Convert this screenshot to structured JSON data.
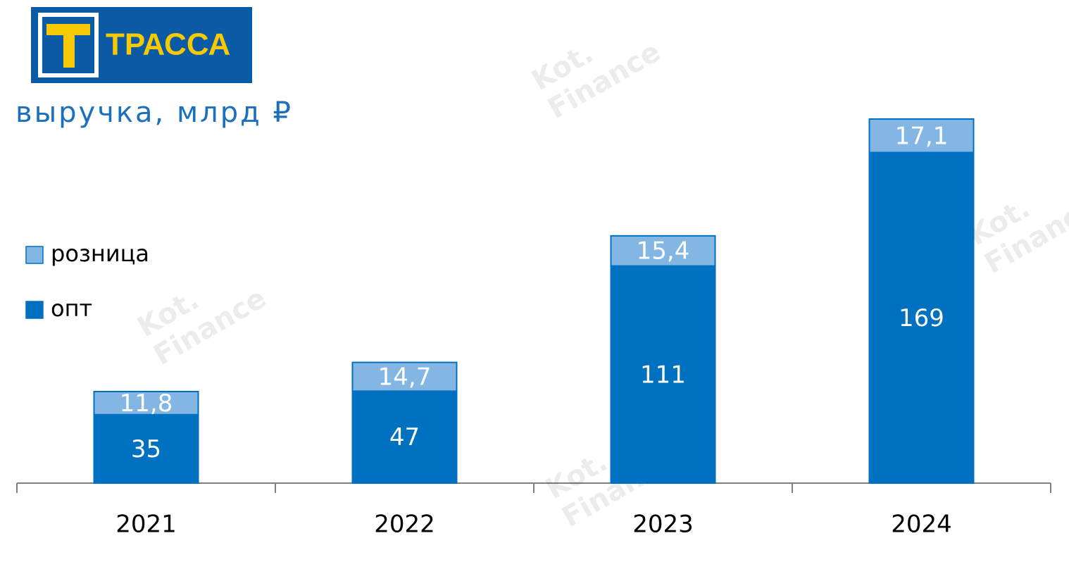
{
  "logo": "ТРАССА",
  "watermark": [
    "Kot.",
    "Finance"
  ],
  "chart_data": {
    "type": "bar",
    "stacked": true,
    "title": "выручка, млрд ₽",
    "categories": [
      "2021",
      "2022",
      "2023",
      "2024"
    ],
    "series": [
      {
        "name": "опт",
        "color": "#0070c0",
        "values": [
          35,
          47,
          111,
          169
        ]
      },
      {
        "name": "розница",
        "color": "#84b6e4",
        "values": [
          11.8,
          14.7,
          15.4,
          17.1
        ],
        "value_labels": [
          "11,8",
          "14,7",
          "15,4",
          "17,1"
        ]
      }
    ],
    "legend": "left"
  }
}
